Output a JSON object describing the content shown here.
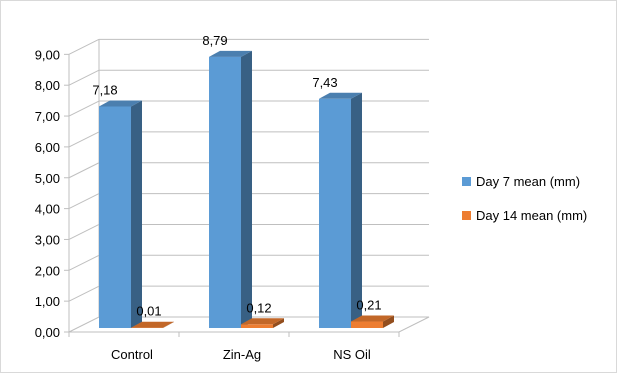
{
  "chart_data": {
    "type": "bar",
    "categories": [
      "Control",
      "Zin-Ag",
      "NS Oil"
    ],
    "series": [
      {
        "name": "Day 7 mean (mm)",
        "values": [
          7.18,
          8.79,
          7.43
        ],
        "value_labels": [
          "7,18",
          "8,79",
          "7,43"
        ],
        "color": "#5b9bd5"
      },
      {
        "name": "Day 14 mean (mm)",
        "values": [
          0.01,
          0.12,
          0.21
        ],
        "value_labels": [
          "0,01",
          "0,12",
          "0,21"
        ],
        "color": "#ed7d31"
      }
    ],
    "y_ticks": [
      "0,00",
      "1,00",
      "2,00",
      "3,00",
      "4,00",
      "5,00",
      "6,00",
      "7,00",
      "8,00",
      "9,00"
    ],
    "ylim": [
      0,
      9
    ],
    "grid": true,
    "legend_position": "right",
    "style": "3d-clustered-column"
  }
}
